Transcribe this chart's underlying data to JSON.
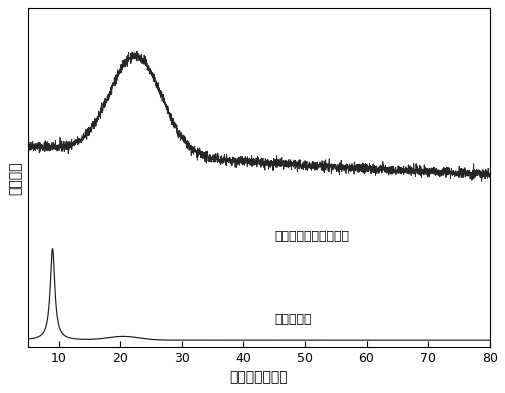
{
  "xlabel": "衍射角度（度）",
  "ylabel": "衍射强度",
  "label_top": "硫掺杂还原氧化石墨烯",
  "label_bottom": "氧化石墨烯",
  "xmin": 5,
  "xmax": 80,
  "xticks": [
    10,
    20,
    30,
    40,
    50,
    60,
    70,
    80
  ],
  "bg_color": "#ffffff",
  "line_color": "#1a1a1a"
}
